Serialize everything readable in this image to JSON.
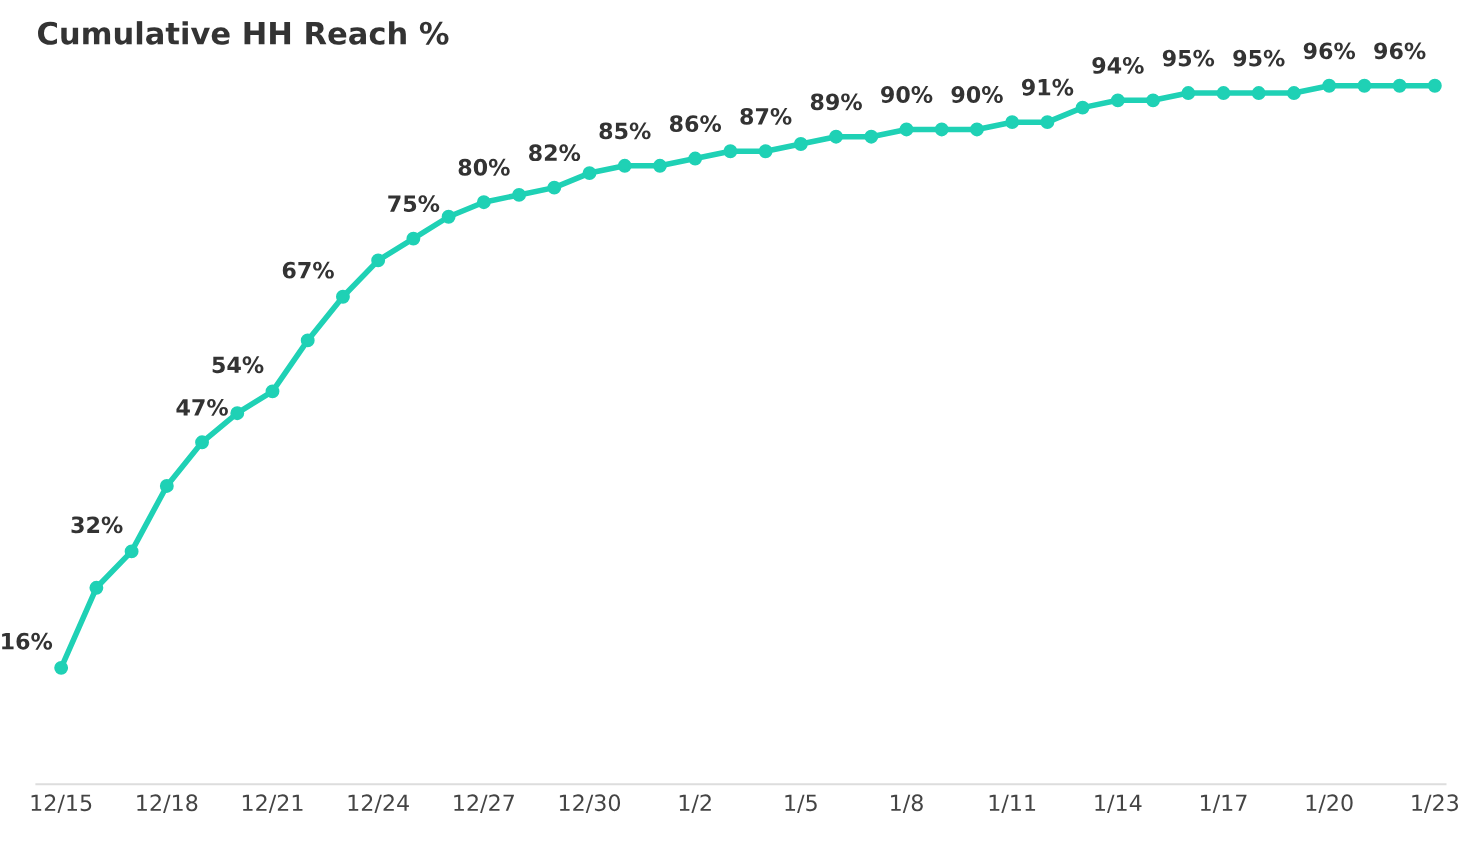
{
  "chart_data": {
    "type": "line",
    "title": "Cumulative HH Reach %",
    "categories": [
      "12/15",
      null,
      null,
      "12/18",
      null,
      null,
      "12/21",
      null,
      null,
      "12/24",
      null,
      null,
      "12/27",
      null,
      null,
      "12/30",
      null,
      null,
      "1/2",
      null,
      null,
      "1/5",
      null,
      null,
      "1/8",
      null,
      null,
      "1/11",
      null,
      null,
      "1/14",
      null,
      null,
      "1/17",
      null,
      null,
      "1/20",
      null,
      null,
      "1/23"
    ],
    "series": [
      {
        "color": "#1fd1b5",
        "values": [
          16,
          27,
          32,
          41,
          47,
          51,
          54,
          61,
          67,
          72,
          75,
          78,
          80,
          81,
          82,
          84,
          85,
          85,
          86,
          87,
          87,
          88,
          89,
          89,
          90,
          90,
          90,
          91,
          91,
          93,
          94,
          94,
          95,
          95,
          95,
          95,
          96,
          96,
          96,
          96
        ],
        "value_labels": [
          "16%",
          null,
          "32%",
          null,
          "47%",
          null,
          "54%",
          null,
          "67%",
          null,
          "75%",
          null,
          "80%",
          null,
          "82%",
          null,
          "85%",
          null,
          "86%",
          null,
          "87%",
          null,
          "89%",
          null,
          "90%",
          null,
          "90%",
          null,
          "91%",
          null,
          "94%",
          null,
          "95%",
          null,
          "95%",
          null,
          "96%",
          null,
          "96%",
          null
        ]
      }
    ],
    "marker": "circle",
    "line_style": "solid",
    "grid": false,
    "legend": false,
    "tick_labels": "x"
  }
}
